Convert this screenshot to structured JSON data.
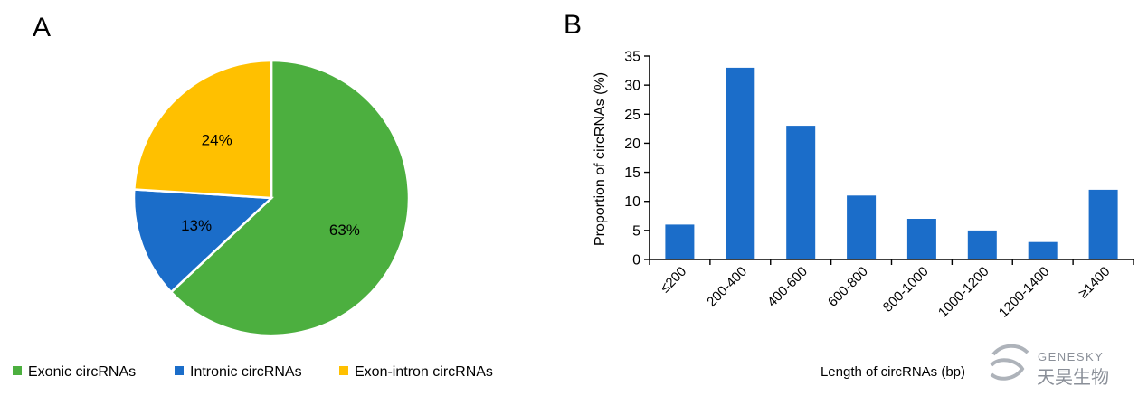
{
  "panels": {
    "a_label": "A",
    "b_label": "B"
  },
  "chart_data": [
    {
      "type": "pie",
      "slices": [
        {
          "name": "Exonic circRNAs",
          "value": 63,
          "label": "63%",
          "color": "#4caf3f"
        },
        {
          "name": "Intronic circRNAs",
          "value": 13,
          "label": "13%",
          "color": "#1b6dc9"
        },
        {
          "name": "Exon-intron circRNAs",
          "value": 24,
          "label": "24%",
          "color": "#ffc000"
        }
      ],
      "legend_position": "bottom"
    },
    {
      "type": "bar",
      "categories": [
        "≤200",
        "200-400",
        "400-600",
        "600-800",
        "800-1000",
        "1000-1200",
        "1200-1400",
        "≥1400"
      ],
      "series": [
        {
          "values": [
            6,
            33,
            23,
            11,
            7,
            5,
            3,
            12
          ],
          "color": "#1b6dc9"
        }
      ],
      "ylabel": "Proportion of circRNAs (%)",
      "xlabel": "Length of circRNAs (bp)",
      "ylim": [
        0,
        35
      ],
      "yticks": [
        0,
        5,
        10,
        15,
        20,
        25,
        30,
        35
      ],
      "grid": false
    }
  ],
  "watermark": {
    "brand_en": "GENESKY",
    "brand_cn": "天昊生物"
  }
}
